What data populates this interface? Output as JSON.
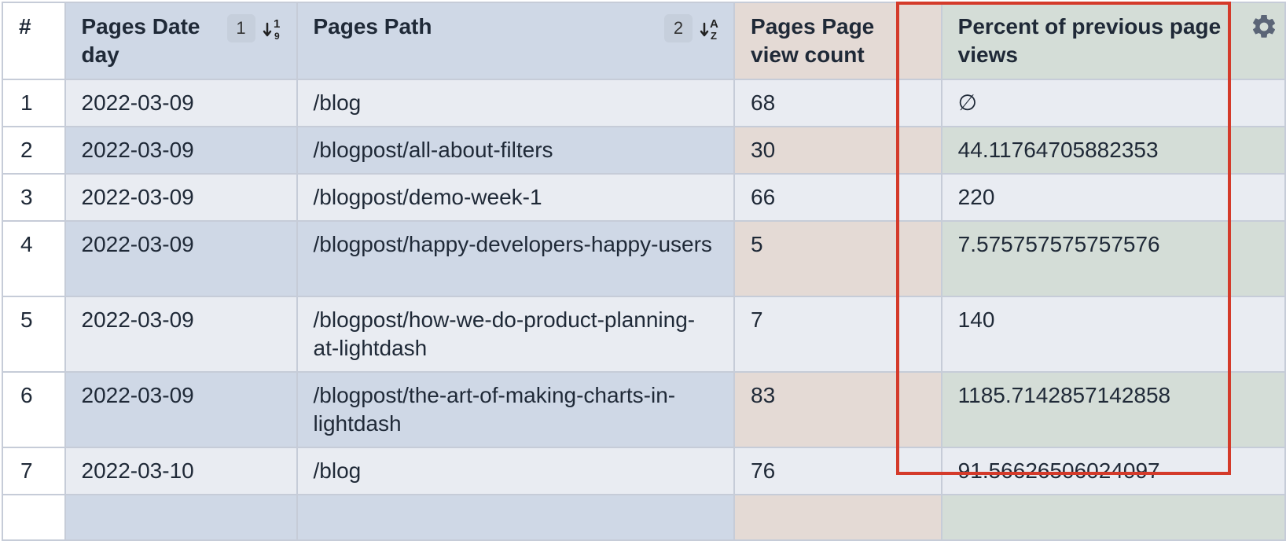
{
  "columns": [
    {
      "label": "#"
    },
    {
      "label": "Pages Date day",
      "sort_index": "1",
      "sort_icon": "sort-numeric-asc-icon"
    },
    {
      "label": "Pages Path",
      "sort_index": "2",
      "sort_icon": "sort-alpha-asc-icon"
    },
    {
      "label": "Pages Page view count"
    },
    {
      "label": "Percent of previous page views",
      "action_icon": "gear-icon"
    }
  ],
  "rows": [
    {
      "num": "1",
      "date": "2022-03-09",
      "path": "/blog",
      "views": "68",
      "percent": "∅"
    },
    {
      "num": "2",
      "date": "2022-03-09",
      "path": "/blogpost/all-about-filters",
      "views": "30",
      "percent": "44.11764705882353"
    },
    {
      "num": "3",
      "date": "2022-03-09",
      "path": "/blogpost/demo-week-1",
      "views": "66",
      "percent": "220"
    },
    {
      "num": "4",
      "date": "2022-03-09",
      "path": "/blogpost/happy-developers-happy-users",
      "views": "5",
      "percent": "7.575757575757576"
    },
    {
      "num": "5",
      "date": "2022-03-09",
      "path": "/blogpost/how-we-do-product-planning-at-lightdash",
      "views": "7",
      "percent": "140"
    },
    {
      "num": "6",
      "date": "2022-03-09",
      "path": "/blogpost/the-art-of-making-charts-in-lightdash",
      "views": "83",
      "percent": "1185.7142857142858"
    },
    {
      "num": "7",
      "date": "2022-03-10",
      "path": "/blog",
      "views": "76",
      "percent": "91.56626506024097"
    }
  ],
  "colors": {
    "dimension_header": "#cfd8e6",
    "metric_header": "#e4dad5",
    "calculation_header": "#d4ddd7",
    "highlight_border": "#d43a2a"
  }
}
